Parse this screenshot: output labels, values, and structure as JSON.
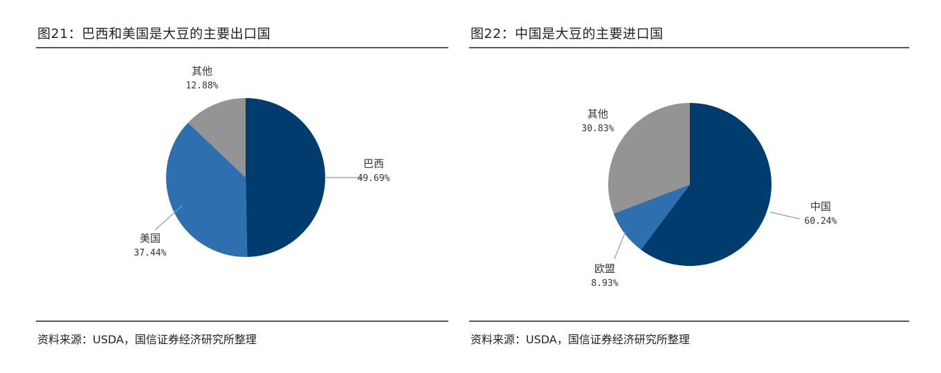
{
  "figures": [
    {
      "title": "图21：巴西和美国是大豆的主要出口国",
      "source_prefix": "资料来源：",
      "source_rest": "USDA，国信证券经济研究所整理"
    },
    {
      "title": "图22：中国是大豆的主要进口国",
      "source_prefix": "资料来源：",
      "source_rest": "USDA，国信证券经济研究所整理"
    }
  ],
  "chart_data": [
    {
      "type": "pie",
      "slices": [
        {
          "label": "巴西",
          "value": 49.69,
          "pct_label": "49.69%",
          "color": "#003d6e"
        },
        {
          "label": "美国",
          "value": 37.44,
          "pct_label": "37.44%",
          "color": "#2e6fb0"
        },
        {
          "label": "其他",
          "value": 12.88,
          "pct_label": "12.88%",
          "color": "#949494"
        }
      ]
    },
    {
      "type": "pie",
      "slices": [
        {
          "label": "中国",
          "value": 60.24,
          "pct_label": "60.24%",
          "color": "#003d6e"
        },
        {
          "label": "欧盟",
          "value": 8.93,
          "pct_label": "8.93%",
          "color": "#2e6fb0"
        },
        {
          "label": "其他",
          "value": 30.83,
          "pct_label": "30.83%",
          "color": "#949494"
        }
      ]
    }
  ]
}
